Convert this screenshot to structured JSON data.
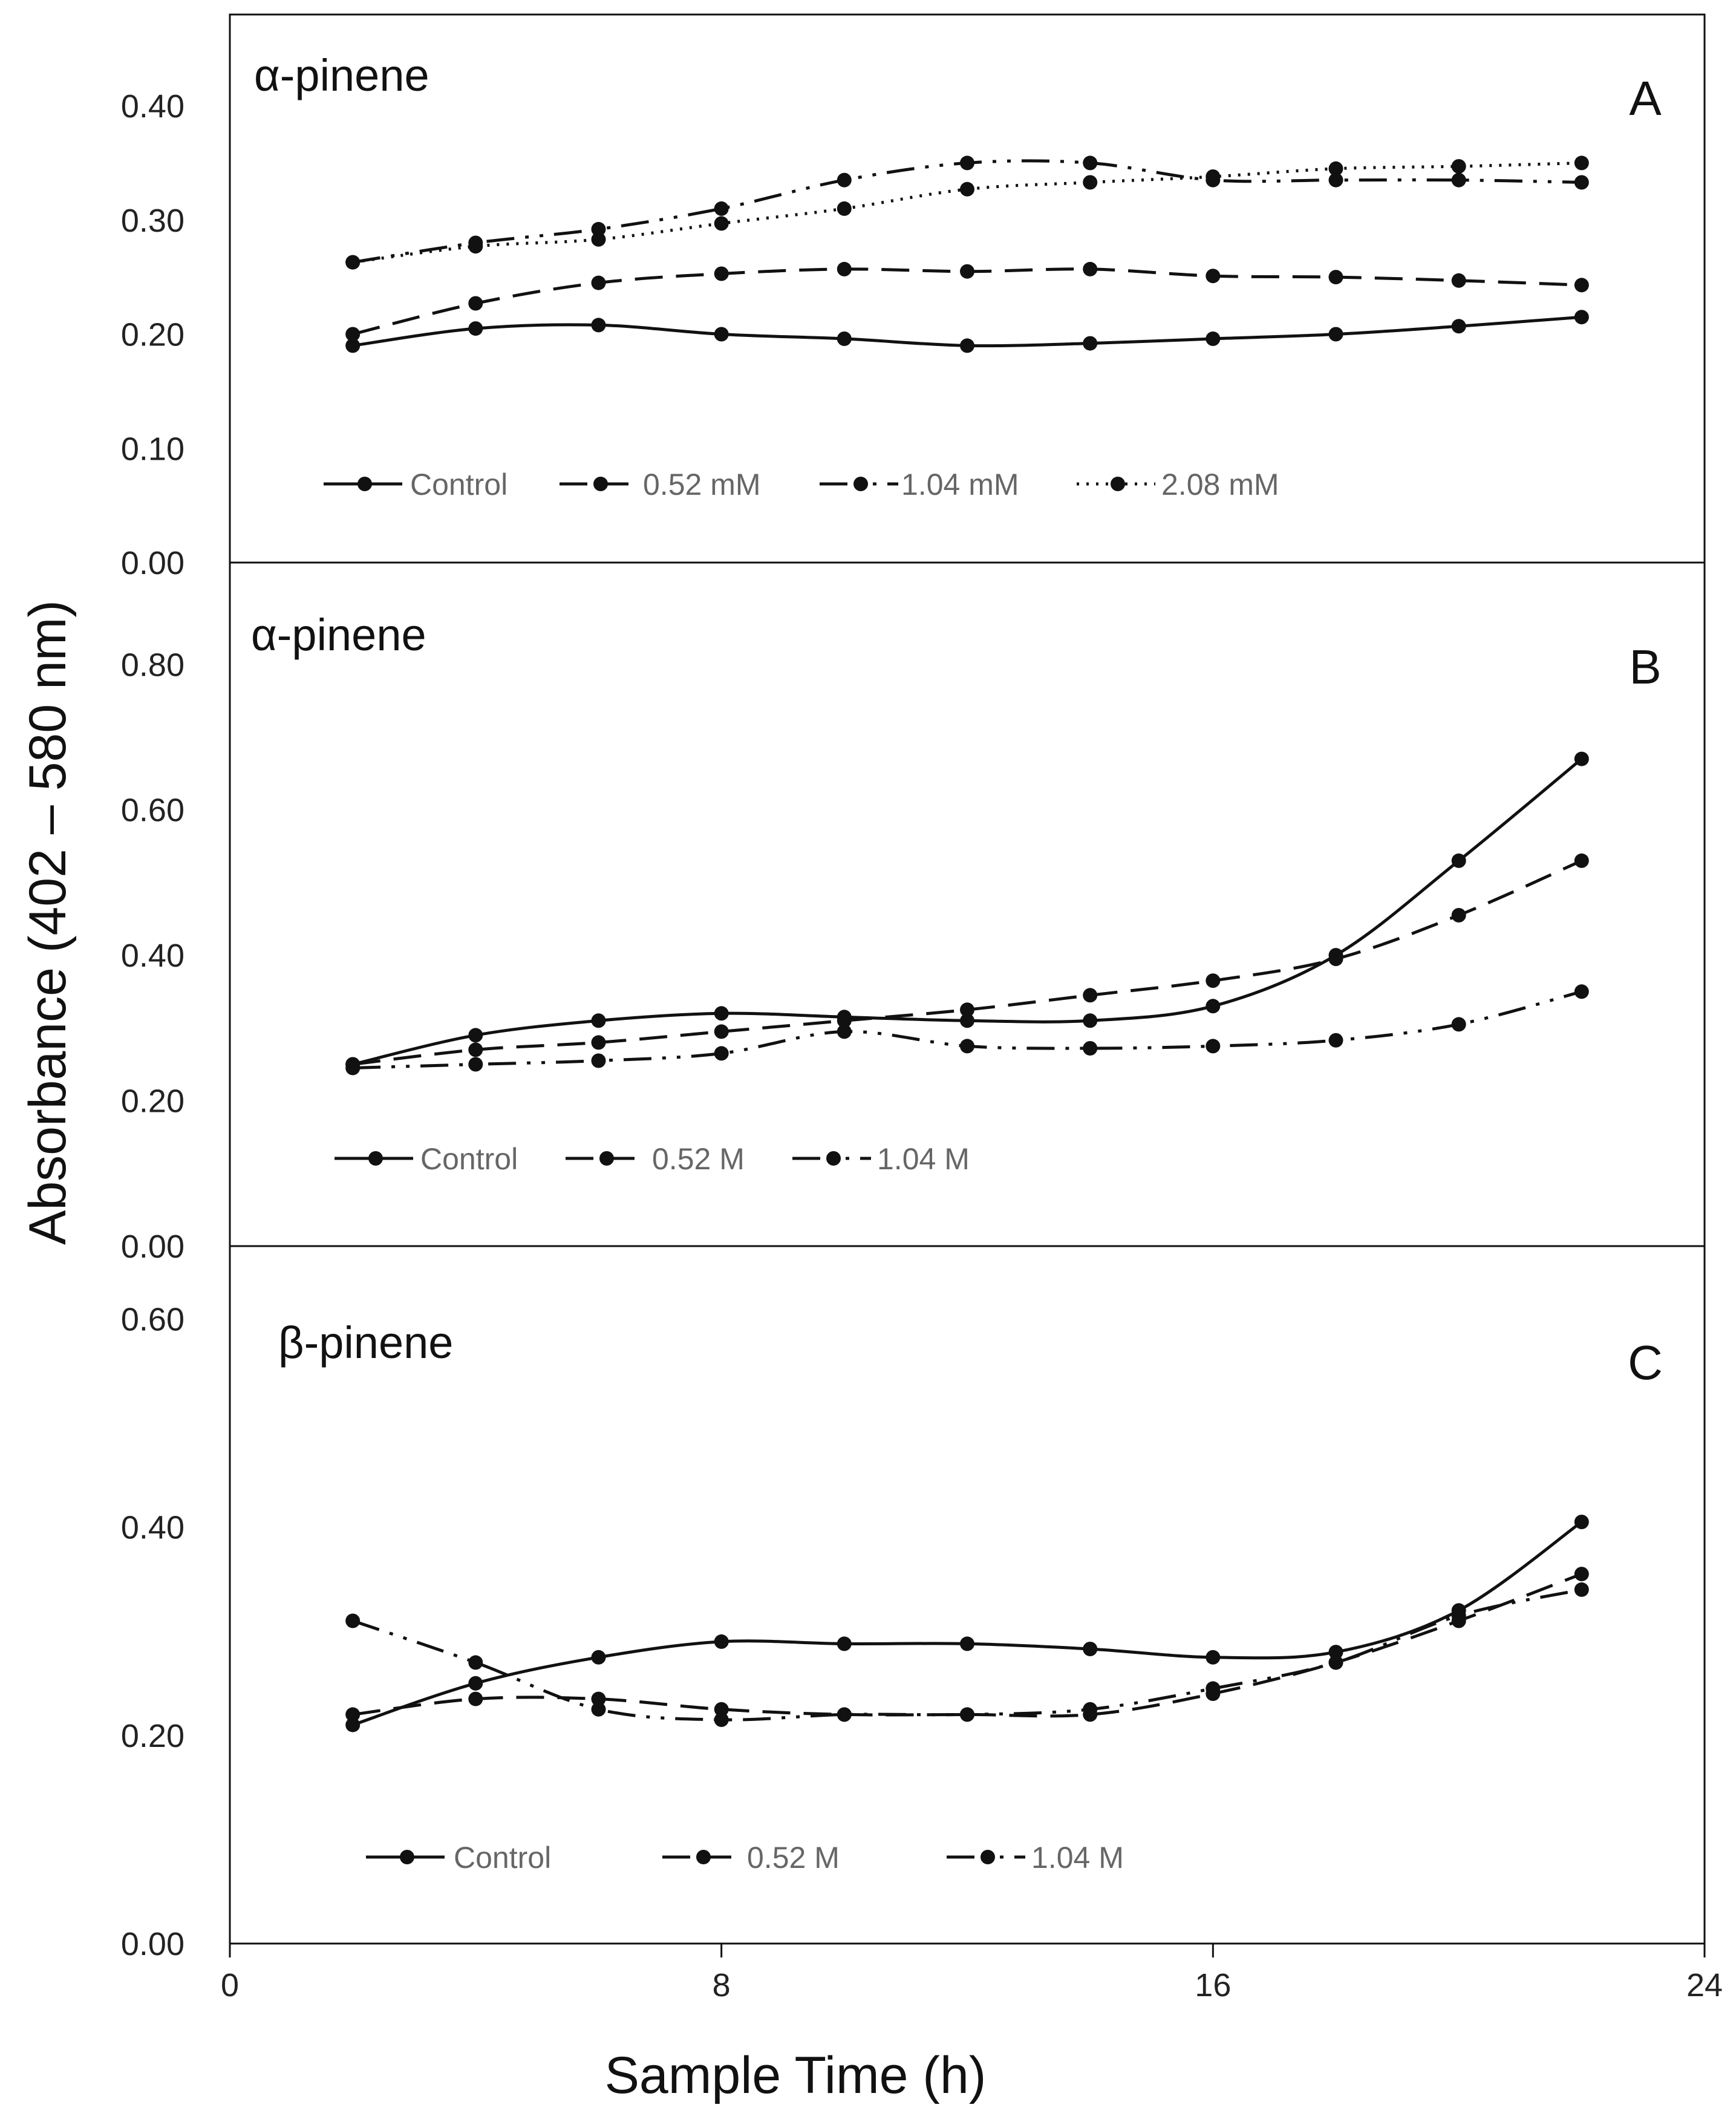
{
  "chart_data": [
    {
      "type": "line",
      "panel_label": "A",
      "title": "α-pinene",
      "xlabel": "Sample Time (h)",
      "ylabel": "Absorbance (402 – 580 nm)",
      "xlim": [
        0,
        24
      ],
      "ylim": [
        0,
        0.48
      ],
      "y_ticks": [
        "0.00",
        "0.10",
        "0.20",
        "0.30",
        "0.40"
      ],
      "x": [
        2,
        4,
        6,
        8,
        10,
        12,
        14,
        16,
        18,
        20,
        22
      ],
      "series": [
        {
          "name": "Control",
          "style": "solid",
          "values": [
            0.19,
            0.205,
            0.208,
            0.2,
            0.196,
            0.19,
            0.192,
            0.196,
            0.2,
            0.207,
            0.215
          ]
        },
        {
          "name": "0.52 mM",
          "style": "dashed",
          "values": [
            0.2,
            0.227,
            0.245,
            0.253,
            0.257,
            0.255,
            0.257,
            0.251,
            0.25,
            0.247,
            0.243
          ]
        },
        {
          "name": "1.04 mM",
          "style": "dashdotdot",
          "values": [
            0.263,
            0.28,
            0.292,
            0.31,
            0.335,
            0.35,
            0.35,
            0.335,
            0.335,
            0.335,
            0.333
          ]
        },
        {
          "name": "2.08 mM",
          "style": "dotted",
          "values": [
            0.263,
            0.277,
            0.283,
            0.297,
            0.31,
            0.327,
            0.333,
            0.338,
            0.345,
            0.347,
            0.35
          ]
        }
      ]
    },
    {
      "type": "line",
      "panel_label": "B",
      "title": "α-pinene",
      "xlim": [
        0,
        24
      ],
      "ylim": [
        0,
        0.94
      ],
      "y_ticks": [
        "0.00",
        "0.20",
        "0.40",
        "0.60",
        "0.80"
      ],
      "x": [
        2,
        4,
        6,
        8,
        10,
        12,
        14,
        16,
        18,
        20,
        22
      ],
      "series": [
        {
          "name": "Control",
          "style": "solid",
          "values": [
            0.25,
            0.29,
            0.31,
            0.32,
            0.315,
            0.31,
            0.31,
            0.33,
            0.4,
            0.53,
            0.67
          ]
        },
        {
          "name": "0.52 M",
          "style": "dashed",
          "values": [
            0.25,
            0.27,
            0.28,
            0.295,
            0.31,
            0.325,
            0.345,
            0.365,
            0.395,
            0.455,
            0.53
          ]
        },
        {
          "name": "1.04 M",
          "style": "dashdotdot",
          "values": [
            0.245,
            0.25,
            0.255,
            0.265,
            0.295,
            0.275,
            0.272,
            0.275,
            0.283,
            0.305,
            0.35
          ]
        }
      ]
    },
    {
      "type": "line",
      "panel_label": "C",
      "title": "β-pinene",
      "xlim": [
        0,
        24
      ],
      "ylim": [
        0,
        0.67
      ],
      "y_ticks": [
        "0.00",
        "0.20",
        "0.40",
        "0.60"
      ],
      "x": [
        2,
        4,
        6,
        8,
        10,
        12,
        14,
        16,
        18,
        20,
        22
      ],
      "series": [
        {
          "name": "Control",
          "style": "solid",
          "values": [
            0.21,
            0.25,
            0.275,
            0.29,
            0.288,
            0.288,
            0.283,
            0.275,
            0.28,
            0.32,
            0.405
          ]
        },
        {
          "name": "0.52 M",
          "style": "dashed",
          "values": [
            0.22,
            0.235,
            0.235,
            0.225,
            0.22,
            0.22,
            0.22,
            0.24,
            0.27,
            0.31,
            0.355
          ]
        },
        {
          "name": "1.04 M",
          "style": "dashdotdot",
          "values": [
            0.31,
            0.27,
            0.225,
            0.215,
            0.22,
            0.22,
            0.225,
            0.245,
            0.27,
            0.315,
            0.34
          ]
        }
      ]
    }
  ],
  "x_axis": {
    "ticks": [
      0,
      8,
      16,
      24
    ],
    "tick_labels": [
      "0",
      "8",
      "16",
      "24"
    ]
  }
}
